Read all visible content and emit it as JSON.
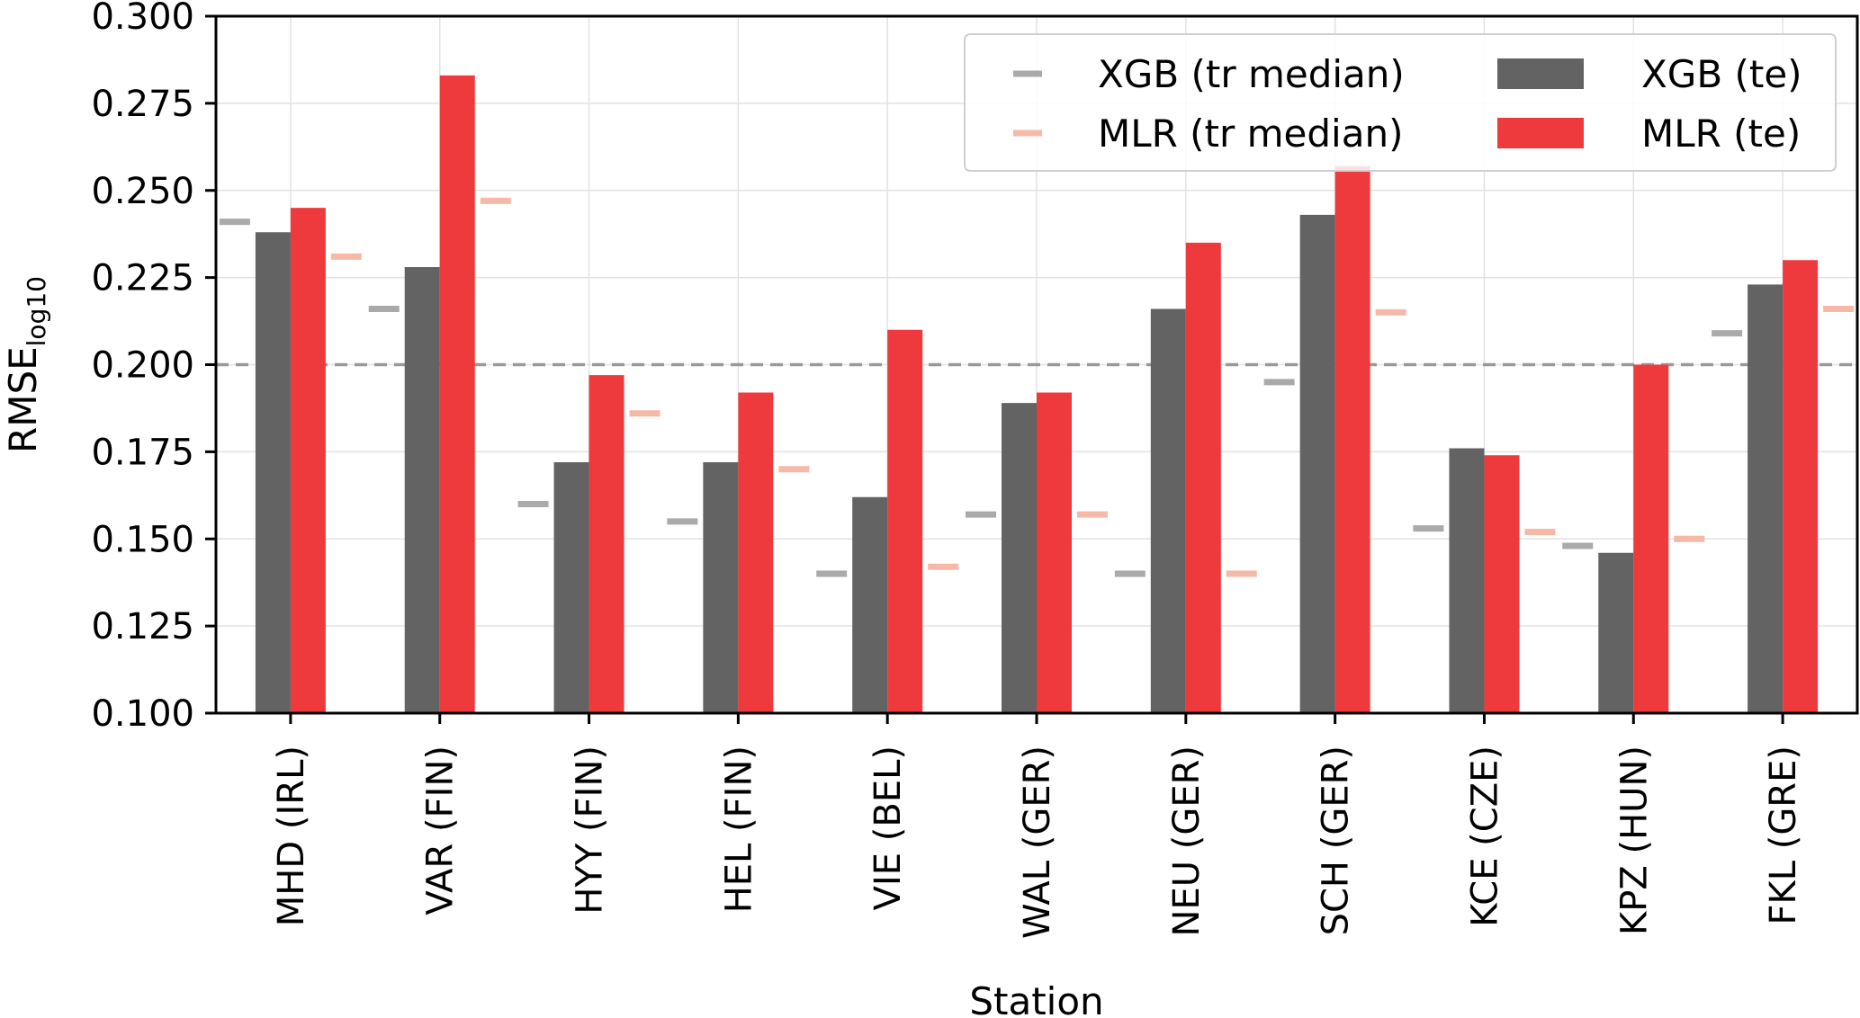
{
  "chart_data": {
    "type": "bar",
    "xlabel": "Station",
    "ylabel": "RMSE",
    "ylabel_subscript": "log10",
    "ylim": [
      0.1,
      0.3
    ],
    "yticks": [
      "0.100",
      "0.125",
      "0.150",
      "0.175",
      "0.200",
      "0.225",
      "0.250",
      "0.275",
      "0.300"
    ],
    "grid": true,
    "reference_line": 0.2,
    "legend_position": "top-right",
    "categories": [
      "MHD (IRL)",
      "VAR (FIN)",
      "HYY (FIN)",
      "HEL (FIN)",
      "VIE (BEL)",
      "WAL (GER)",
      "NEU (GER)",
      "SCH (GER)",
      "KCE (CZE)",
      "KPZ (HUN)",
      "FKL (GRE)"
    ],
    "series": [
      {
        "name": "XGB (te)",
        "kind": "bar",
        "color": "#636363",
        "values": [
          0.238,
          0.228,
          0.172,
          0.172,
          0.162,
          0.189,
          0.216,
          0.243,
          0.176,
          0.146,
          0.223
        ]
      },
      {
        "name": "MLR (te)",
        "kind": "bar",
        "color": "#ef3a3d",
        "values": [
          0.245,
          0.283,
          0.197,
          0.192,
          0.21,
          0.192,
          0.235,
          0.257,
          0.174,
          0.2,
          0.23
        ]
      },
      {
        "name": "XGB (tr median)",
        "kind": "marker",
        "color": "#aaaaaa",
        "values": [
          0.241,
          0.216,
          0.16,
          0.155,
          0.14,
          0.157,
          0.14,
          0.195,
          0.153,
          0.148,
          0.209
        ]
      },
      {
        "name": "MLR (tr median)",
        "kind": "marker",
        "color": "#f6b9a8",
        "values": [
          0.231,
          0.247,
          0.186,
          0.17,
          0.142,
          0.157,
          0.14,
          0.215,
          0.152,
          0.15,
          0.216
        ]
      }
    ]
  }
}
